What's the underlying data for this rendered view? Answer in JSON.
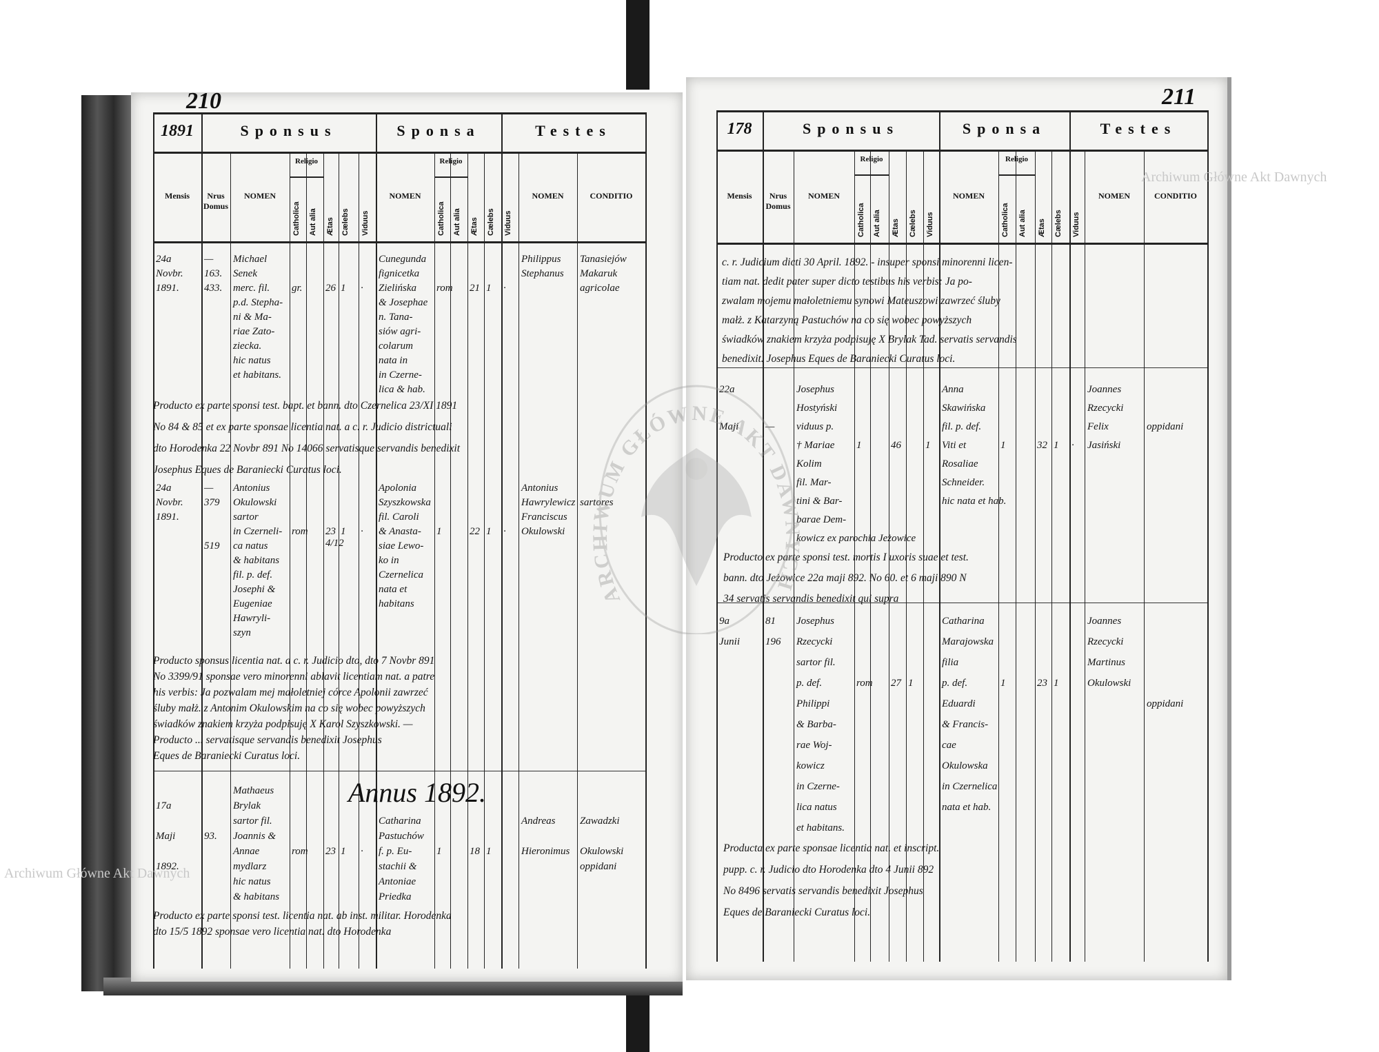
{
  "watermarks": {
    "top_right": "Archiwum Główne Akt Dawnych",
    "bottom_left": "Archiwum Główne Akt Dawnych",
    "seal": "ARCHIWUM GŁÓWNE AKT DAWNYCH"
  },
  "left_page": {
    "page_number": "210",
    "year": "1891",
    "headers": {
      "sponsus": "Sponsus",
      "sponsa": "Sponsa",
      "testes": "Testes",
      "mensis": "Mensis",
      "nrus_domus": "Nrus Domus",
      "nomen": "NOMEN",
      "religio": "Religio",
      "catholica": "Catholica",
      "aut_alia": "Aut alia",
      "aetas": "Ætas",
      "caelebs": "Cælebs",
      "viduus": "Viduus",
      "conditio": "CONDITIO"
    },
    "annus": "Annus 1892.",
    "entries": [
      {
        "date": [
          "24a",
          "Novbr.",
          "1891."
        ],
        "house": [
          "—",
          "163.",
          "433."
        ],
        "sponsus": [
          "Michael",
          "Senek",
          "merc. fil.",
          "p.d. Stepha-",
          "ni & Ma-",
          "riae Zato-",
          "ziecka.",
          "hic natus",
          "et habitans."
        ],
        "s_rel": "gr.",
        "s_aetas": "26",
        "s_caelebs": "1",
        "s_viduus": "·",
        "sponsa": [
          "Cunegunda",
          "fignicetka",
          "Zielińska",
          "& Josephae",
          "n. Tana-",
          "siów agri-",
          "colarum",
          "nata in",
          "in Czerne-",
          "lica & hab."
        ],
        "a_rel": "rom",
        "a_aetas": "21",
        "a_caelebs": "1",
        "a_viduus": "·",
        "testes": [
          "Philippus",
          "Stephanus"
        ],
        "conditio": [
          "Tanasiejów",
          "Makaruk",
          "agricolae"
        ],
        "notes": [
          "Producto ex parte sponsi test. bapt. et bann. dto Czernelica 23/XI 1891",
          "No 84 & 85 et ex parte sponsae licentia nat. a c. r. Judicio districtuali",
          "dto Horodenka 22 Novbr 891 No 14066 servatisque servandis benedixit",
          "Josephus Eques de Baraniecki Curatus loci."
        ]
      },
      {
        "date": [
          "24a",
          "Novbr.",
          "1891."
        ],
        "house": [
          "—",
          "379",
          "",
          "",
          "519"
        ],
        "sponsus": [
          "Antonius",
          "Okulowski",
          "sartor",
          "in Czerneli-",
          "ca natus",
          "& habitans",
          "fil. p. def.",
          "Josephi &",
          "Eugeniae",
          "Hawryli-",
          "szyn"
        ],
        "s_rel": "rom",
        "s_aetas": "23 4/12",
        "s_caelebs": "1",
        "s_viduus": "·",
        "sponsa": [
          "Apolonia",
          "Szyszkowska",
          "fil. Caroli",
          "& Anasta-",
          "siae Lewo-",
          "ko in",
          "Czernelica",
          "nata et",
          "habitans"
        ],
        "a_rel": "1",
        "a_aetas": "22",
        "a_caelebs": "1",
        "a_viduus": "·",
        "testes": [
          "Antonius",
          "Hawrylewicz",
          "Franciscus",
          "Okulowski"
        ],
        "conditio": [
          "",
          "sartores"
        ],
        "notes": [
          "Producto sponsus licentia nat. a c. r. Judicio dto, dto 7 Novbr 891",
          "No 3399/91 sponsae vero minorenni ablavit licentiam nat. a patre",
          "his verbis: Ja pozwalam mej małoletniej córce Apolonii zawrzeć",
          "śluby małż. z Antonim Okulowskim na co się wobec powyższych",
          "świadków znakiem krzyża podpisuję X Karol Szyszkowski. —",
          "Producto ... servatisque servandis benedixit Josephus",
          "Eques de Baraniecki Curatus loci."
        ]
      },
      {
        "date": [
          "",
          "17a",
          "",
          "Maji",
          "",
          "1892."
        ],
        "house": [
          "",
          "",
          "",
          "93."
        ],
        "sponsus": [
          "Mathaeus",
          "Brylak",
          "sartor fil.",
          "Joannis &",
          "Annae",
          "mydlarz",
          "hic natus",
          "& habitans"
        ],
        "s_rel": "rom",
        "s_aetas": "23",
        "s_caelebs": "1",
        "s_viduus": "·",
        "sponsa": [
          "",
          "",
          "Catharina",
          "Pastuchów",
          "f. p. Eu-",
          "stachii &",
          "Antoniae",
          "Priedka"
        ],
        "a_rel": "1",
        "a_aetas": "18",
        "a_caelebs": "1",
        "a_viduus": "",
        "testes": [
          "",
          "",
          "Andreas",
          "",
          "Hieronimus"
        ],
        "conditio": [
          "",
          "",
          "Zawadzki",
          "",
          "Okulowski",
          "oppidani"
        ],
        "notes": [
          "Producto ex parte sponsi test. licentia nat. ab inst. militar. Horodenka",
          "dto 15/5 1892 sponsae vero licentia nat. dto Horodenka"
        ]
      }
    ]
  },
  "right_page": {
    "page_number": "211",
    "row_number": "178",
    "headers": {
      "sponsus": "Sponsus",
      "sponsa": "Sponsa",
      "testes": "Testes",
      "mensis": "Mensis",
      "nrus_domus": "Nrus Domus",
      "nomen": "NOMEN",
      "religio": "Religio",
      "catholica": "Catholica",
      "aut_alia": "Aut alia",
      "aetas": "Ætas",
      "caelebs": "Cælebs",
      "viduus": "Viduus",
      "conditio": "CONDITIO"
    },
    "top_notes": [
      "c. r. Judicium dicti 30 April. 1892. - insuper sponsi minorenni licen-",
      "tiam nat. dedit pater super dicto testibus his verbis: Ja po-",
      "zwalam mojemu małoletniemu synowi Mateuszowi zawrzeć śluby",
      "małż. z Katarzyną Pastuchów na co się wobec powyższych",
      "świadków znakiem krzyża podpisuję X Brylak Tad. servatis servandis",
      "benedixit. Josephus Eques de Baraniecki Curatus loci."
    ],
    "entries": [
      {
        "date": [
          "22a",
          "",
          "Maji"
        ],
        "house": [
          "",
          "",
          "—"
        ],
        "sponsus": [
          "Josephus",
          "Hostyński",
          "viduus p.",
          "† Mariae",
          "Kolim",
          "fil. Mar-",
          "tini & Bar-",
          "barae Dem-",
          "kowicz ex parochia Jeżowice"
        ],
        "s_rel": "1",
        "s_aetas": "46",
        "s_caelebs": "",
        "s_viduus": "1",
        "sponsa": [
          "Anna",
          "Skawińska",
          "fil. p. def.",
          "Viti et",
          "Rosaliae",
          "Schneider.",
          "hic nata et hab."
        ],
        "a_rel": "1",
        "a_aetas": "32",
        "a_caelebs": "1",
        "a_viduus": "·",
        "testes": [
          "Joannes",
          "Rzecycki",
          "Felix",
          "Jasiński"
        ],
        "conditio": [
          "",
          "",
          "oppidani"
        ],
        "notes": [
          "Producto ex parte sponsi test. mortis I uxoris suae et test.",
          "bann. dto Jeżowice 22a maji 892. No 60. et 6 maji 890 N",
          "34 servatis servandis benedixit qui supra"
        ]
      },
      {
        "date": [
          "9a",
          "Junii"
        ],
        "house": [
          "81",
          "196"
        ],
        "sponsus": [
          "Josephus",
          "Rzecycki",
          "sartor fil.",
          "p. def.",
          "Philippi",
          "& Barba-",
          "rae Woj-",
          "kowicz",
          "in Czerne-",
          "lica natus",
          "et habitans."
        ],
        "s_rel": "rom",
        "s_aetas": "27",
        "s_caelebs": "1",
        "s_viduus": "",
        "sponsa": [
          "Catharina",
          "Marajowska",
          "filia",
          "p. def.",
          "Eduardi",
          "& Francis-",
          "cae",
          "Okulowska",
          "in Czernelica",
          "nata et hab."
        ],
        "a_rel": "1",
        "a_aetas": "23",
        "a_caelebs": "1",
        "a_viduus": "",
        "testes": [
          "Joannes",
          "Rzecycki",
          "Martinus",
          "Okulowski"
        ],
        "conditio": [
          "",
          "",
          "",
          "",
          "oppidani"
        ],
        "notes": [
          "Producta ex parte sponsae licentia nat. et inscript.",
          "pupp. c. r. Judicio dto Horodenka dto 4 Junii 892",
          "No 8496 servatis servandis benedixit Josephus",
          "Eques de Baraniecki Curatus loci."
        ]
      }
    ]
  }
}
